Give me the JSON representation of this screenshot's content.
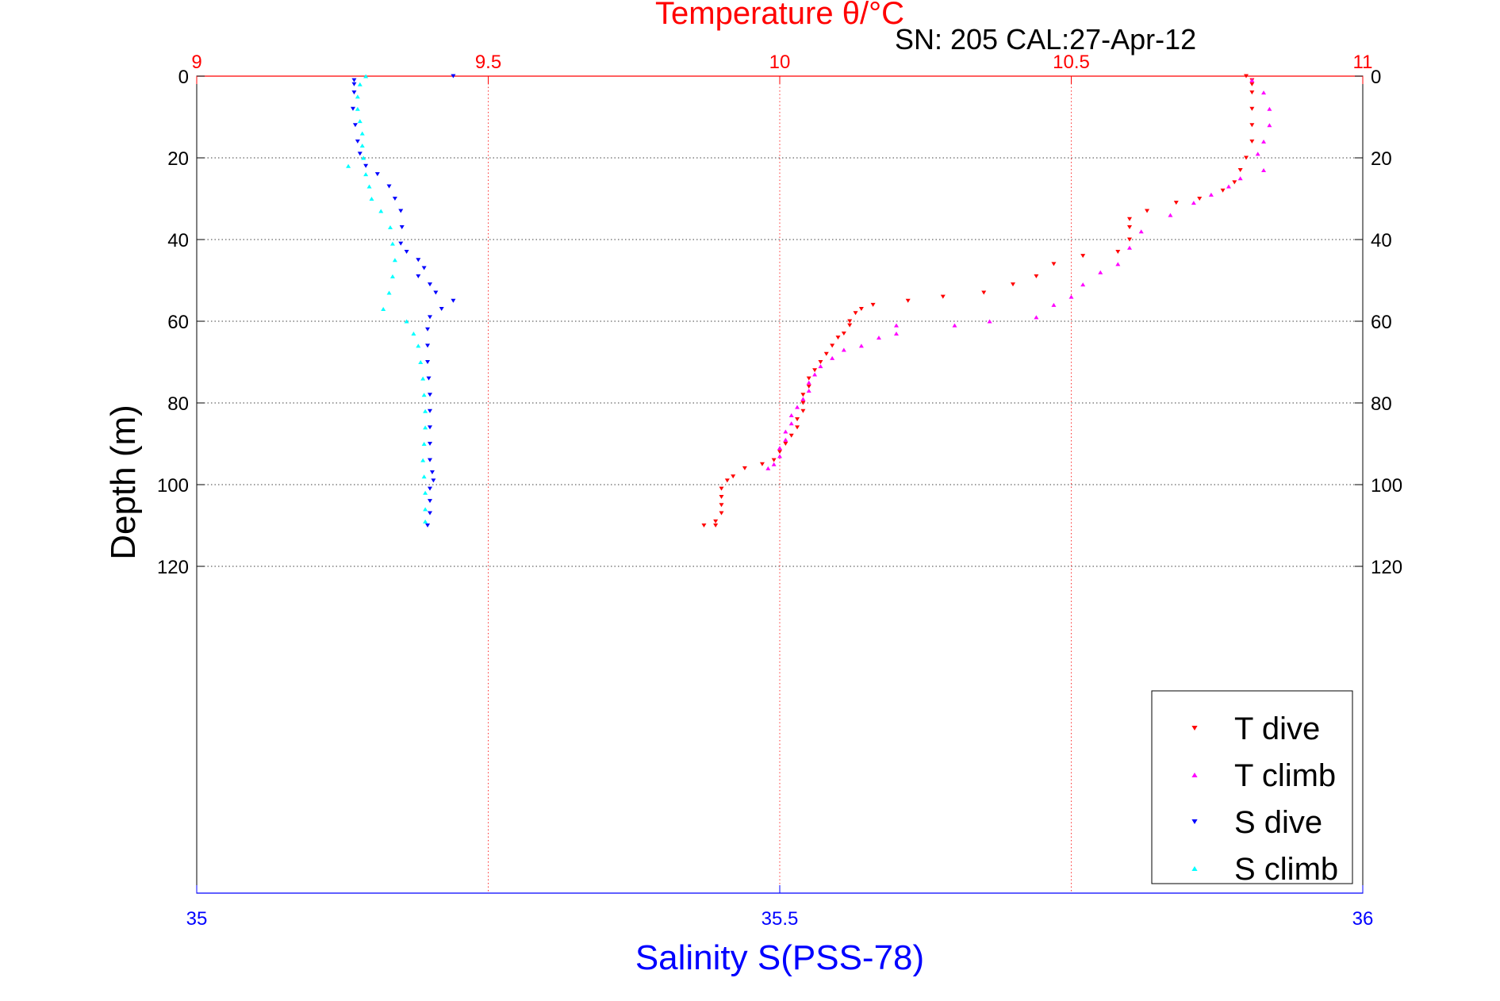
{
  "title_top": "Temperature θ/°C",
  "subtitle": "SN: 205  CAL:27-Apr-12",
  "colors": {
    "temperature_axis": "#ff0000",
    "salinity_axis": "#0000ff",
    "axis_black": "#000000",
    "grid": "#000000"
  },
  "chart_data": {
    "type": "scatter",
    "title": "Temperature θ/°C",
    "subtitle": "SN: 205  CAL:27-Apr-12",
    "ylabel": "Depth (m)",
    "xlabel_bottom": "Salinity S(PSS-78)",
    "xlabel_top": "Temperature θ/°C",
    "y_reversed": true,
    "ylim": [
      0,
      200
    ],
    "y_ticks": [
      0,
      20,
      40,
      60,
      80,
      100,
      120
    ],
    "y_tick_labels": [
      "0",
      "20",
      "40",
      "60",
      "80",
      "100",
      "120"
    ],
    "temperature_xlim": [
      9,
      11
    ],
    "temperature_ticks": [
      9,
      9.5,
      10,
      10.5,
      11
    ],
    "temperature_tick_labels": [
      "9",
      "9.5",
      "10",
      "10.5",
      "11"
    ],
    "salinity_xlim": [
      35,
      36
    ],
    "salinity_ticks": [
      35,
      35.5,
      36
    ],
    "salinity_tick_labels": [
      "35",
      "35.5",
      "36"
    ],
    "grid": true,
    "legend_position": "bottom-right",
    "series": [
      {
        "name": "T dive",
        "axis": "temperature",
        "marker": "down-triangle",
        "color": "#ff0000",
        "points": [
          [
            10.8,
            0
          ],
          [
            10.81,
            1
          ],
          [
            10.81,
            2
          ],
          [
            10.81,
            4
          ],
          [
            10.81,
            8
          ],
          [
            10.81,
            12
          ],
          [
            10.81,
            16
          ],
          [
            10.8,
            20
          ],
          [
            10.79,
            23
          ],
          [
            10.78,
            26
          ],
          [
            10.76,
            28
          ],
          [
            10.72,
            30
          ],
          [
            10.68,
            31
          ],
          [
            10.63,
            33
          ],
          [
            10.6,
            35
          ],
          [
            10.6,
            37
          ],
          [
            10.6,
            40
          ],
          [
            10.58,
            43
          ],
          [
            10.52,
            44
          ],
          [
            10.47,
            46
          ],
          [
            10.44,
            49
          ],
          [
            10.4,
            51
          ],
          [
            10.35,
            53
          ],
          [
            10.28,
            54
          ],
          [
            10.22,
            55
          ],
          [
            10.16,
            56
          ],
          [
            10.14,
            57
          ],
          [
            10.13,
            58
          ],
          [
            10.12,
            60
          ],
          [
            10.12,
            61
          ],
          [
            10.11,
            63
          ],
          [
            10.1,
            64
          ],
          [
            10.09,
            66
          ],
          [
            10.08,
            68
          ],
          [
            10.07,
            70
          ],
          [
            10.06,
            72
          ],
          [
            10.05,
            74
          ],
          [
            10.05,
            76
          ],
          [
            10.04,
            78
          ],
          [
            10.04,
            80
          ],
          [
            10.04,
            82
          ],
          [
            10.03,
            84
          ],
          [
            10.03,
            86
          ],
          [
            10.02,
            88
          ],
          [
            10.01,
            90
          ],
          [
            10,
            92
          ],
          [
            9.99,
            94
          ],
          [
            9.97,
            95
          ],
          [
            9.94,
            96
          ],
          [
            9.92,
            98
          ],
          [
            9.91,
            99
          ],
          [
            9.9,
            101
          ],
          [
            9.9,
            103
          ],
          [
            9.9,
            105
          ],
          [
            9.9,
            107
          ],
          [
            9.89,
            109
          ],
          [
            9.89,
            110
          ],
          [
            9.87,
            110
          ]
        ]
      },
      {
        "name": "T climb",
        "axis": "temperature",
        "marker": "up-triangle",
        "color": "#ff00ff",
        "points": [
          [
            10.81,
            1
          ],
          [
            10.83,
            4
          ],
          [
            10.84,
            8
          ],
          [
            10.84,
            12
          ],
          [
            10.83,
            16
          ],
          [
            10.82,
            19
          ],
          [
            10.83,
            23
          ],
          [
            10.79,
            25
          ],
          [
            10.77,
            27
          ],
          [
            10.74,
            29
          ],
          [
            10.71,
            31
          ],
          [
            10.67,
            34
          ],
          [
            10.62,
            38
          ],
          [
            10.6,
            42
          ],
          [
            10.58,
            46
          ],
          [
            10.55,
            48
          ],
          [
            10.52,
            51
          ],
          [
            10.5,
            54
          ],
          [
            10.47,
            56
          ],
          [
            10.44,
            59
          ],
          [
            10.36,
            60
          ],
          [
            10.3,
            61
          ],
          [
            10.2,
            61
          ],
          [
            10.2,
            63
          ],
          [
            10.17,
            64
          ],
          [
            10.14,
            66
          ],
          [
            10.11,
            67
          ],
          [
            10.09,
            69
          ],
          [
            10.07,
            71
          ],
          [
            10.06,
            73
          ],
          [
            10.05,
            75
          ],
          [
            10.05,
            77
          ],
          [
            10.04,
            79
          ],
          [
            10.03,
            81
          ],
          [
            10.02,
            83
          ],
          [
            10.02,
            85
          ],
          [
            10.01,
            87
          ],
          [
            10.01,
            89
          ],
          [
            10,
            91
          ],
          [
            10,
            93
          ],
          [
            9.99,
            95
          ],
          [
            9.98,
            96
          ]
        ]
      },
      {
        "name": "S dive",
        "axis": "salinity",
        "marker": "down-triangle",
        "color": "#0000ff",
        "points": [
          [
            35.22,
            0
          ],
          [
            35.135,
            1
          ],
          [
            35.135,
            2
          ],
          [
            35.135,
            4
          ],
          [
            35.134,
            8
          ],
          [
            35.136,
            12
          ],
          [
            35.138,
            16
          ],
          [
            35.14,
            19
          ],
          [
            35.145,
            22
          ],
          [
            35.155,
            24
          ],
          [
            35.165,
            27
          ],
          [
            35.17,
            30
          ],
          [
            35.175,
            33
          ],
          [
            35.176,
            37
          ],
          [
            35.175,
            41
          ],
          [
            35.18,
            43
          ],
          [
            35.19,
            45
          ],
          [
            35.195,
            47
          ],
          [
            35.19,
            49
          ],
          [
            35.2,
            51
          ],
          [
            35.205,
            53
          ],
          [
            35.22,
            55
          ],
          [
            35.21,
            57
          ],
          [
            35.2,
            59
          ],
          [
            35.198,
            62
          ],
          [
            35.198,
            66
          ],
          [
            35.198,
            70
          ],
          [
            35.199,
            74
          ],
          [
            35.2,
            78
          ],
          [
            35.2,
            82
          ],
          [
            35.2,
            86
          ],
          [
            35.2,
            90
          ],
          [
            35.2,
            94
          ],
          [
            35.202,
            97
          ],
          [
            35.203,
            99
          ],
          [
            35.2,
            101
          ],
          [
            35.2,
            104
          ],
          [
            35.2,
            107
          ],
          [
            35.198,
            110
          ]
        ]
      },
      {
        "name": "S climb",
        "axis": "salinity",
        "marker": "up-triangle",
        "color": "#00ffff",
        "points": [
          [
            35.145,
            0
          ],
          [
            35.14,
            2
          ],
          [
            35.138,
            5
          ],
          [
            35.138,
            8
          ],
          [
            35.14,
            11
          ],
          [
            35.142,
            14
          ],
          [
            35.142,
            17
          ],
          [
            35.143,
            20
          ],
          [
            35.13,
            22
          ],
          [
            35.145,
            24
          ],
          [
            35.148,
            27
          ],
          [
            35.15,
            30
          ],
          [
            35.158,
            33
          ],
          [
            35.166,
            37
          ],
          [
            35.168,
            41
          ],
          [
            35.17,
            45
          ],
          [
            35.168,
            49
          ],
          [
            35.165,
            53
          ],
          [
            35.16,
            57
          ],
          [
            35.18,
            60
          ],
          [
            35.186,
            63
          ],
          [
            35.19,
            66
          ],
          [
            35.192,
            70
          ],
          [
            35.194,
            74
          ],
          [
            35.195,
            78
          ],
          [
            35.196,
            82
          ],
          [
            35.196,
            86
          ],
          [
            35.195,
            90
          ],
          [
            35.194,
            94
          ],
          [
            35.195,
            98
          ],
          [
            35.196,
            102
          ],
          [
            35.196,
            106
          ],
          [
            35.196,
            109
          ]
        ]
      }
    ]
  }
}
